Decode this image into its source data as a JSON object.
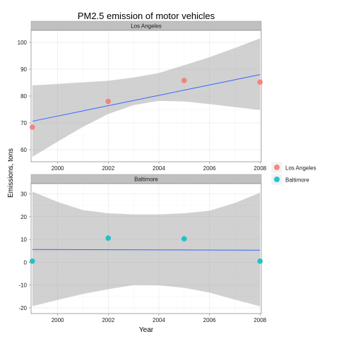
{
  "chart_data": {
    "type": "scatter",
    "title": "PM2.5 emission of motor vehicles",
    "xlabel": "Year",
    "ylabel": "Emissions, tons",
    "x_ticks": [
      "2000",
      "2002",
      "2004",
      "2006",
      "2008"
    ],
    "xlim": [
      1998.95,
      2008.05
    ],
    "grid": true,
    "legend": {
      "placement": "right",
      "entries": [
        {
          "label": "Los Angeles",
          "color": "#F8766D"
        },
        {
          "label": "Baltimore",
          "color": "#00BFC4"
        }
      ]
    },
    "panels": [
      {
        "name": "Los Angeles",
        "color": "#F8766D",
        "ylim": [
          55.5,
          104.5
        ],
        "y_ticks": [
          "60",
          "70",
          "80",
          "90",
          "100"
        ],
        "x": [
          1999,
          2002,
          2005,
          2008
        ],
        "y": [
          68.4,
          78.0,
          85.8,
          85.2
        ],
        "fit": {
          "x": [
            1999,
            2008
          ],
          "y": [
            70.6,
            88.0
          ],
          "line_color": "#3366FF"
        },
        "band": {
          "x": [
            1999,
            2000,
            2001,
            2002,
            2003,
            2004,
            2005,
            2006,
            2007,
            2008
          ],
          "lower": [
            57.3,
            63.0,
            68.5,
            73.3,
            76.6,
            78.2,
            78.0,
            77.0,
            75.9,
            74.8
          ],
          "upper": [
            84.0,
            84.5,
            85.1,
            85.7,
            86.9,
            88.6,
            91.5,
            94.5,
            97.9,
            101.5
          ]
        }
      },
      {
        "name": "Baltimore",
        "color": "#00BFC4",
        "ylim": [
          -22.5,
          34.5
        ],
        "y_ticks": [
          "-20",
          "-10",
          "0",
          "10",
          "20",
          "30"
        ],
        "x": [
          1999,
          2002,
          2005,
          2008
        ],
        "y": [
          0.5,
          10.6,
          10.3,
          0.5
        ],
        "fit": {
          "x": [
            1999,
            2008
          ],
          "y": [
            5.6,
            5.3
          ],
          "line_color": "#3366FF"
        },
        "band": {
          "x": [
            1999,
            2000,
            2001,
            2002,
            2003,
            2004,
            2005,
            2006,
            2007,
            2008
          ],
          "lower": [
            -19.3,
            -16.5,
            -13.9,
            -11.8,
            -10.0,
            -10.1,
            -11.2,
            -13.3,
            -16.4,
            -19.3
          ],
          "upper": [
            31.0,
            26.5,
            22.9,
            21.5,
            21.0,
            21.0,
            21.5,
            22.6,
            26.0,
            30.5
          ]
        }
      }
    ]
  }
}
